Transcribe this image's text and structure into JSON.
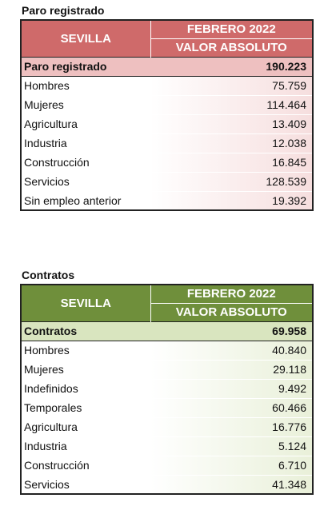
{
  "paro": {
    "title": "Paro registrado",
    "header_city": "SEVILLA",
    "header_period": "FEBRERO 2022",
    "header_measure": "VALOR ABSOLUTO",
    "total_label": "Paro registrado",
    "total_value": "190.223",
    "rows": [
      {
        "label": "Hombres",
        "value": "75.759"
      },
      {
        "label": "Mujeres",
        "value": "114.464"
      },
      {
        "label": "Agricultura",
        "value": "13.409"
      },
      {
        "label": "Industria",
        "value": "12.038"
      },
      {
        "label": "Construcción",
        "value": "16.845"
      },
      {
        "label": "Servicios",
        "value": "128.539"
      },
      {
        "label": "Sin empleo anterior",
        "value": "19.392"
      }
    ],
    "colors": {
      "header": "#cf6a6a",
      "total": "#eec0c0"
    }
  },
  "contratos": {
    "title": "Contratos",
    "header_city": "SEVILLA",
    "header_period": "FEBRERO 2022",
    "header_measure": "VALOR ABSOLUTO",
    "total_label": "Contratos",
    "total_value": "69.958",
    "rows": [
      {
        "label": "Hombres",
        "value": "40.840"
      },
      {
        "label": "Mujeres",
        "value": "29.118"
      },
      {
        "label": "Indefinidos",
        "value": "9.492"
      },
      {
        "label": "Temporales",
        "value": "60.466"
      },
      {
        "label": "Agricultura",
        "value": "16.776"
      },
      {
        "label": "Industria",
        "value": "5.124"
      },
      {
        "label": "Construcción",
        "value": "6.710"
      },
      {
        "label": "Servicios",
        "value": "41.348"
      }
    ],
    "colors": {
      "header": "#6f8f3b",
      "total": "#d9e5bf"
    }
  }
}
